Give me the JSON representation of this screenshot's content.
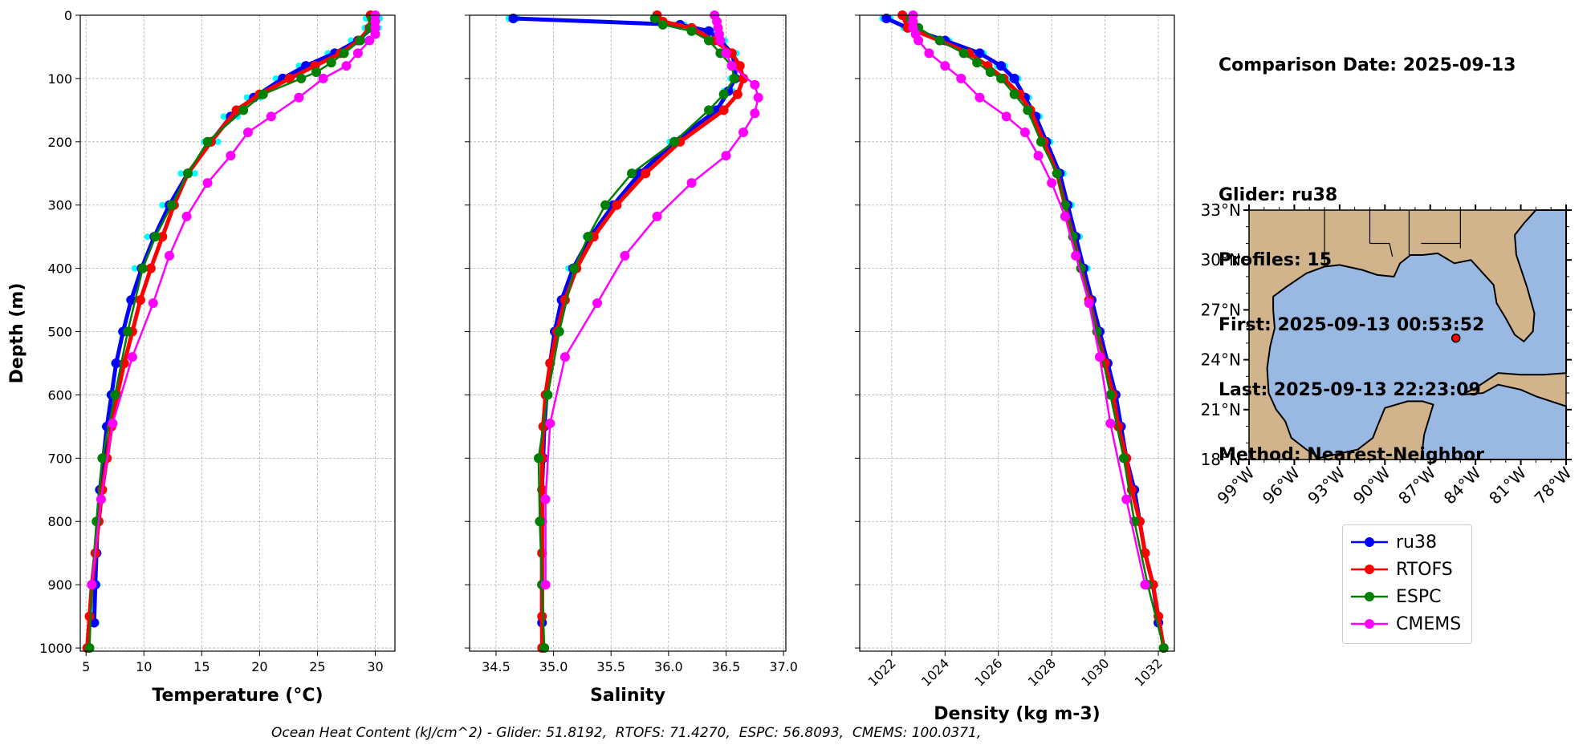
{
  "info": {
    "comparison_date": "Comparison Date: 2025-09-13",
    "glider": "Glider: ru38",
    "profiles": "Profiles: 15",
    "first": "First: 2025-09-13 00:53:52",
    "last": "Last: 2025-09-13 22:23:09",
    "method": "Method: Nearest-Neighbor"
  },
  "footer": "Ocean Heat Content (kJ/cm^2) - Glider: 51.8192,  RTOFS: 71.4270,  ESPC: 56.8093,  CMEMS: 100.0371,",
  "colors": {
    "ru38": "#0000ff",
    "RTOFS": "#ff0000",
    "ESPC": "#008000",
    "CMEMS": "#ff00ff",
    "glider_raw": "#00ffff",
    "land": "#d2b48c",
    "ocean": "#99b8e2"
  },
  "legend": [
    {
      "name": "ru38",
      "color": "#0000ff"
    },
    {
      "name": "RTOFS",
      "color": "#ff0000"
    },
    {
      "name": "ESPC",
      "color": "#008000"
    },
    {
      "name": "CMEMS",
      "color": "#ff00ff"
    }
  ],
  "chart_data": [
    {
      "type": "line",
      "xlabel": "Temperature (°C)",
      "ylabel": "Depth (m)",
      "xlim": [
        4.5,
        31.7
      ],
      "ylim": [
        1005,
        0
      ],
      "xticks": [
        5,
        10,
        15,
        20,
        25,
        30
      ],
      "yticks": [
        0,
        100,
        200,
        300,
        400,
        500,
        600,
        700,
        800,
        900,
        1000
      ],
      "grid": true,
      "series": [
        {
          "name": "ru38",
          "depth": [
            5,
            20,
            40,
            60,
            80,
            100,
            130,
            160,
            200,
            250,
            300,
            350,
            400,
            450,
            500,
            550,
            600,
            650,
            700,
            750,
            800,
            850,
            900,
            960
          ],
          "values": [
            29.8,
            29.7,
            28.5,
            26.5,
            24.0,
            22.0,
            19.5,
            17.5,
            15.8,
            13.8,
            12.2,
            10.9,
            9.8,
            8.9,
            8.2,
            7.6,
            7.2,
            6.8,
            6.5,
            6.2,
            6.0,
            5.9,
            5.8,
            5.7
          ]
        },
        {
          "name": "RTOFS",
          "depth": [
            0,
            20,
            40,
            60,
            80,
            100,
            125,
            150,
            200,
            250,
            300,
            350,
            400,
            450,
            500,
            550,
            600,
            650,
            700,
            750,
            800,
            850,
            900,
            950,
            1000
          ],
          "values": [
            29.6,
            29.5,
            28.6,
            27.0,
            24.8,
            22.6,
            20.0,
            18.0,
            15.8,
            13.8,
            12.6,
            11.6,
            10.6,
            9.7,
            9.0,
            8.3,
            7.7,
            7.2,
            6.8,
            6.4,
            6.1,
            5.8,
            5.5,
            5.3,
            5.1
          ]
        },
        {
          "name": "ESPC",
          "depth": [
            5,
            20,
            40,
            60,
            75,
            90,
            100,
            125,
            150,
            200,
            250,
            300,
            350,
            400,
            500,
            600,
            700,
            800,
            900,
            1000
          ],
          "values": [
            29.7,
            29.6,
            28.7,
            27.3,
            26.2,
            24.9,
            23.6,
            20.3,
            18.6,
            15.5,
            13.8,
            12.4,
            11.0,
            9.9,
            8.6,
            7.5,
            6.4,
            5.9,
            5.5,
            5.3
          ]
        },
        {
          "name": "CMEMS",
          "depth": [
            0,
            10,
            20,
            30,
            40,
            60,
            80,
            100,
            130,
            160,
            185,
            222,
            265,
            318,
            380,
            455,
            540,
            645,
            765,
            900
          ],
          "values": [
            30.0,
            30.0,
            30.0,
            30.0,
            29.5,
            28.5,
            27.5,
            25.5,
            23.4,
            21.0,
            19.0,
            17.5,
            15.5,
            13.7,
            12.2,
            10.8,
            9.0,
            7.3,
            6.3,
            5.5
          ]
        }
      ]
    },
    {
      "type": "line",
      "xlabel": "Salinity",
      "ylabel": "",
      "xlim": [
        34.27,
        37.02
      ],
      "ylim": [
        1005,
        0
      ],
      "xticks": [
        34.5,
        35.0,
        35.5,
        36.0,
        36.5,
        37.0
      ],
      "yticks": [
        0,
        100,
        200,
        300,
        400,
        500,
        600,
        700,
        800,
        900,
        1000
      ],
      "grid": true,
      "series": [
        {
          "name": "ru38",
          "depth": [
            5,
            15,
            25,
            40,
            60,
            80,
            100,
            120,
            150,
            200,
            250,
            300,
            350,
            400,
            450,
            500,
            550,
            600,
            650,
            700,
            750,
            800,
            850,
            900,
            960
          ],
          "values": [
            34.65,
            36.1,
            36.35,
            36.45,
            36.55,
            36.58,
            36.58,
            36.52,
            36.42,
            36.05,
            35.75,
            35.52,
            35.32,
            35.17,
            35.07,
            35.01,
            34.97,
            34.94,
            34.92,
            34.91,
            34.9,
            34.9,
            34.9,
            34.9,
            34.9
          ]
        },
        {
          "name": "RTOFS",
          "depth": [
            0,
            10,
            20,
            40,
            60,
            80,
            100,
            125,
            150,
            200,
            250,
            300,
            350,
            400,
            450,
            500,
            550,
            600,
            650,
            700,
            750,
            800,
            850,
            900,
            950,
            1000
          ],
          "values": [
            35.9,
            35.95,
            36.2,
            36.4,
            36.55,
            36.62,
            36.65,
            36.6,
            36.48,
            36.1,
            35.8,
            35.55,
            35.35,
            35.2,
            35.1,
            35.03,
            34.97,
            34.93,
            34.91,
            34.9,
            34.9,
            34.9,
            34.9,
            34.9,
            34.9,
            34.9
          ]
        },
        {
          "name": "ESPC",
          "depth": [
            5,
            15,
            25,
            40,
            60,
            80,
            100,
            125,
            150,
            200,
            250,
            300,
            350,
            400,
            500,
            600,
            700,
            800,
            900,
            1000
          ],
          "values": [
            35.88,
            35.95,
            36.2,
            36.35,
            36.45,
            36.55,
            36.57,
            36.48,
            36.35,
            36.05,
            35.68,
            35.45,
            35.3,
            35.18,
            35.05,
            34.95,
            34.87,
            34.88,
            34.9,
            34.92
          ]
        },
        {
          "name": "CMEMS",
          "depth": [
            0,
            10,
            20,
            30,
            40,
            60,
            80,
            110,
            130,
            155,
            185,
            222,
            265,
            318,
            380,
            455,
            540,
            645,
            765,
            900
          ],
          "values": [
            36.4,
            36.42,
            36.43,
            36.44,
            36.45,
            36.5,
            36.55,
            36.75,
            36.78,
            36.75,
            36.65,
            36.5,
            36.2,
            35.9,
            35.62,
            35.38,
            35.1,
            34.97,
            34.93,
            34.93
          ]
        }
      ]
    },
    {
      "type": "line",
      "xlabel": "Density (kg m-3)",
      "ylabel": "",
      "xlim": [
        1020.8,
        1032.6
      ],
      "ylim": [
        1005,
        0
      ],
      "xticks": [
        1022,
        1024,
        1026,
        1028,
        1030,
        1032
      ],
      "yticks": [
        0,
        100,
        200,
        300,
        400,
        500,
        600,
        700,
        800,
        900,
        1000
      ],
      "grid": true,
      "series": [
        {
          "name": "ru38",
          "depth": [
            5,
            20,
            40,
            60,
            80,
            100,
            130,
            160,
            200,
            250,
            300,
            350,
            400,
            450,
            500,
            550,
            600,
            650,
            700,
            750,
            800,
            850,
            900,
            960
          ],
          "values": [
            1021.8,
            1022.6,
            1024.0,
            1025.3,
            1026.1,
            1026.6,
            1027.0,
            1027.4,
            1027.8,
            1028.3,
            1028.6,
            1028.9,
            1029.2,
            1029.5,
            1029.8,
            1030.1,
            1030.4,
            1030.6,
            1030.8,
            1031.1,
            1031.3,
            1031.5,
            1031.8,
            1032.0
          ]
        },
        {
          "name": "RTOFS",
          "depth": [
            0,
            20,
            40,
            60,
            80,
            100,
            125,
            150,
            200,
            250,
            300,
            350,
            400,
            450,
            500,
            550,
            600,
            650,
            700,
            750,
            800,
            850,
            900,
            950,
            1000
          ],
          "values": [
            1022.4,
            1022.6,
            1023.8,
            1024.9,
            1025.6,
            1026.2,
            1026.8,
            1027.2,
            1027.7,
            1028.2,
            1028.5,
            1028.8,
            1029.1,
            1029.4,
            1029.7,
            1030.0,
            1030.3,
            1030.5,
            1030.8,
            1031.0,
            1031.3,
            1031.5,
            1031.8,
            1032.0,
            1032.2
          ]
        },
        {
          "name": "ESPC",
          "depth": [
            5,
            20,
            40,
            60,
            75,
            90,
            100,
            125,
            150,
            200,
            250,
            300,
            350,
            400,
            500,
            600,
            700,
            800,
            900,
            1000
          ],
          "values": [
            1022.7,
            1023.0,
            1023.8,
            1024.7,
            1025.2,
            1025.7,
            1026.1,
            1026.6,
            1027.1,
            1027.6,
            1028.2,
            1028.5,
            1028.8,
            1029.1,
            1029.7,
            1030.2,
            1030.7,
            1031.1,
            1031.6,
            1032.2
          ]
        },
        {
          "name": "CMEMS",
          "depth": [
            0,
            10,
            20,
            30,
            40,
            60,
            80,
            100,
            130,
            160,
            185,
            222,
            265,
            318,
            380,
            455,
            540,
            645,
            765,
            900
          ],
          "values": [
            1022.8,
            1022.8,
            1022.8,
            1022.9,
            1023.0,
            1023.4,
            1024.0,
            1024.6,
            1025.3,
            1026.3,
            1027.0,
            1027.5,
            1028.0,
            1028.5,
            1028.9,
            1029.4,
            1029.8,
            1030.2,
            1030.8,
            1031.5
          ]
        }
      ]
    }
  ],
  "map": {
    "lon_range": [
      -99,
      -78
    ],
    "lat_range": [
      18,
      33
    ],
    "lon_labels": [
      "99°W",
      "96°W",
      "93°W",
      "90°W",
      "87°W",
      "84°W",
      "81°W",
      "78°W"
    ],
    "lat_labels": [
      "33°N",
      "30°N",
      "27°N",
      "24°N",
      "21°N",
      "18°N"
    ],
    "glider_position": {
      "lon": -85.3,
      "lat": 25.3
    }
  }
}
